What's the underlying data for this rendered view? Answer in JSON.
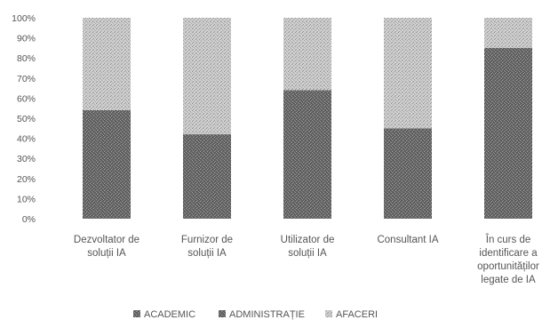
{
  "chart_data": {
    "type": "bar",
    "stacked": true,
    "percent": true,
    "title": "",
    "xlabel": "",
    "ylabel": "",
    "ylim": [
      0,
      100
    ],
    "y_ticks": [
      "0%",
      "10%",
      "20%",
      "30%",
      "40%",
      "50%",
      "60%",
      "70%",
      "80%",
      "90%",
      "100%"
    ],
    "grid": false,
    "legend_position": "bottom",
    "categories": [
      [
        "Dezvoltator de",
        "soluții IA"
      ],
      [
        "Furnizor de",
        "soluții IA"
      ],
      [
        "Utilizator de",
        "soluții IA"
      ],
      [
        "Consultant IA"
      ],
      [
        "În curs de",
        "identificare a",
        "oportunităților",
        "legate de IA"
      ]
    ],
    "series": [
      {
        "name": "ACADEMIC",
        "values": [
          0,
          0,
          0,
          0,
          0
        ],
        "color": "#7a7a7a",
        "pattern": "dark"
      },
      {
        "name": "ADMINISTRAȚIE",
        "values": [
          54,
          42,
          64,
          45,
          85
        ],
        "color": "#6f6f6f",
        "pattern": "dark"
      },
      {
        "name": "AFACERI",
        "values": [
          46,
          58,
          36,
          55,
          15
        ],
        "color": "#c8c8c8",
        "pattern": "light"
      }
    ]
  }
}
